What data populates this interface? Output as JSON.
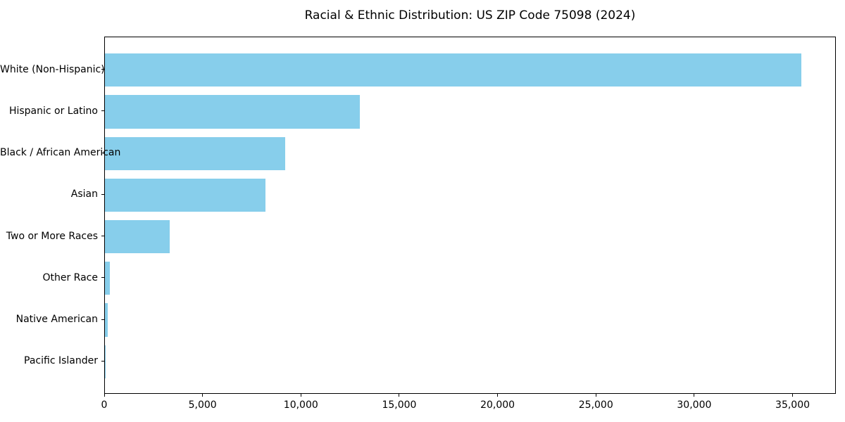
{
  "chart_data": {
    "type": "bar",
    "orientation": "horizontal",
    "title": "Racial & Ethnic Distribution: US ZIP Code 75098 (2024)",
    "categories": [
      "White (Non-Hispanic)",
      "Hispanic or Latino",
      "Black / African American",
      "Asian",
      "Two or More Races",
      "Other Race",
      "Native American",
      "Pacific Islander"
    ],
    "values": [
      35400,
      12950,
      9170,
      8170,
      3300,
      250,
      130,
      20
    ],
    "xlabel": "",
    "ylabel": "",
    "xlim": [
      0,
      37200
    ],
    "xticks": [
      0,
      5000,
      10000,
      15000,
      20000,
      25000,
      30000,
      35000
    ],
    "xtick_labels": [
      "0",
      "5,000",
      "10,000",
      "15,000",
      "20,000",
      "25,000",
      "30,000",
      "35,000"
    ],
    "bar_color": "#87CEEB",
    "grid": false,
    "legend": null
  }
}
